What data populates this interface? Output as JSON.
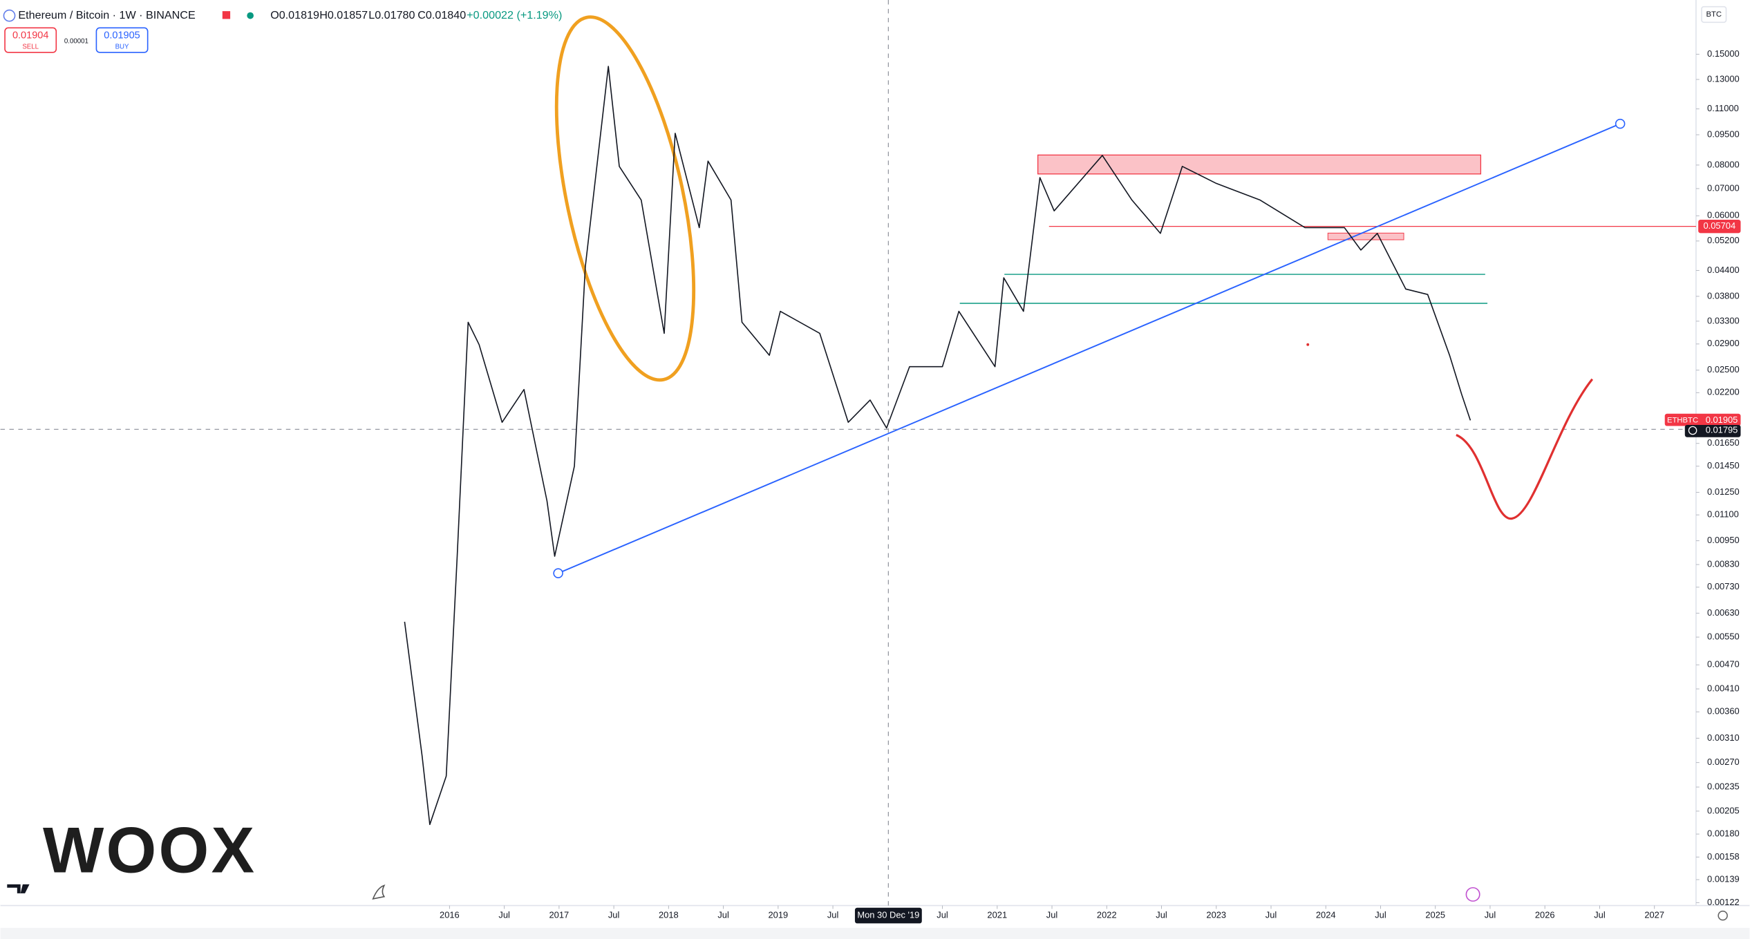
{
  "header": {
    "symbol": "Ethereum / Bitcoin · 1W · BINANCE",
    "open": "O0.01819",
    "high": "H0.01857",
    "low": "L0.01780",
    "close": "C0.01840",
    "change": "+0.00022 (+1.19%)",
    "sell_price": "0.01904",
    "sell": "SELL",
    "spread": "0.00001",
    "buy_price": "0.01905",
    "buy": "BUY"
  },
  "price_axis_unit": "BTC",
  "price_labels": {
    "level": 0.05704,
    "ticker": "ETHBTC",
    "last": 0.01905,
    "crosshair": 0.01795
  },
  "crosshair_label": "Mon 30 Dec '19",
  "watermark": "WOOX",
  "chart_data": {
    "type": "line",
    "log_scale": true,
    "grid": false,
    "x": [
      2015.59,
      2015.75,
      2015.82,
      2015.97,
      2016.07,
      2016.17,
      2016.27,
      2016.48,
      2016.68,
      2016.89,
      2016.96,
      2017.14,
      2017.24,
      2017.45,
      2017.55,
      2017.75,
      2017.96,
      2018.06,
      2018.28,
      2018.36,
      2018.57,
      2018.67,
      2018.92,
      2019.02,
      2019.38,
      2019.64,
      2019.84,
      2019.99,
      2020.2,
      2020.5,
      2020.65,
      2020.98,
      2021.06,
      2021.24,
      2021.39,
      2021.52,
      2021.96,
      2022.23,
      2022.49,
      2022.69,
      2023.0,
      2023.4,
      2023.81,
      2024.17,
      2024.32,
      2024.47,
      2024.73,
      2024.93,
      2025.13,
      2025.24,
      2025.32
    ],
    "series": [
      {
        "name": "ETHBTC",
        "color": "#131722",
        "values": [
          0.006,
          0.0028,
          0.0019,
          0.0025,
          0.0087,
          0.0328,
          0.0289,
          0.0186,
          0.0224,
          0.0119,
          0.0087,
          0.0145,
          0.045,
          0.14,
          0.0794,
          0.0656,
          0.0308,
          0.0958,
          0.0561,
          0.0818,
          0.0656,
          0.0328,
          0.0272,
          0.0349,
          0.0308,
          0.0186,
          0.0211,
          0.018,
          0.0255,
          0.0255,
          0.0349,
          0.0255,
          0.0422,
          0.0349,
          0.0745,
          0.0617,
          0.0845,
          0.0656,
          0.0543,
          0.0794,
          0.0721,
          0.0656,
          0.0561,
          0.0561,
          0.0494,
          0.0543,
          0.0396,
          0.0384,
          0.0272,
          0.0218,
          0.0188
        ]
      }
    ],
    "xlim": [
      2011.9,
      2027.38
    ],
    "ylim": [
      0.0012,
      0.204
    ],
    "xticks": [
      2016,
      {
        "value": 2016.5,
        "label": "Jul"
      },
      2017,
      {
        "value": 2017.5,
        "label": "Jul"
      },
      2018,
      {
        "value": 2018.5,
        "label": "Jul"
      },
      2019,
      {
        "value": 2019.5,
        "label": "Jul"
      },
      {
        "value": 2020.5,
        "label": "Jul"
      },
      2021,
      {
        "value": 2021.5,
        "label": "Jul"
      },
      2022,
      {
        "value": 2022.5,
        "label": "Jul"
      },
      2023,
      {
        "value": 2023.5,
        "label": "Jul"
      },
      2024,
      {
        "value": 2024.5,
        "label": "Jul"
      },
      2025,
      {
        "value": 2025.5,
        "label": "Jul"
      },
      2026,
      {
        "value": 2026.5,
        "label": "Jul"
      },
      2027
    ],
    "yticks": [
      {
        "value": 0.15,
        "label": "0.15000"
      },
      {
        "value": 0.13,
        "label": "0.13000"
      },
      {
        "value": 0.11,
        "label": "0.11000"
      },
      {
        "value": 0.095,
        "label": "0.09500"
      },
      {
        "value": 0.08,
        "label": "0.08000"
      },
      {
        "value": 0.07,
        "label": "0.07000"
      },
      {
        "value": 0.06,
        "label": "0.06000"
      },
      {
        "value": 0.052,
        "label": "0.05200"
      },
      {
        "value": 0.044,
        "label": "0.04400"
      },
      {
        "value": 0.038,
        "label": "0.03800"
      },
      {
        "value": 0.033,
        "label": "0.03300"
      },
      {
        "value": 0.029,
        "label": "0.02900"
      },
      {
        "value": 0.025,
        "label": "0.02500"
      },
      {
        "value": 0.022,
        "label": "0.02200"
      },
      {
        "value": 0.0165,
        "label": "0.01650"
      },
      {
        "value": 0.0145,
        "label": "0.01450"
      },
      {
        "value": 0.0125,
        "label": "0.01250"
      },
      {
        "value": 0.011,
        "label": "0.01100"
      },
      {
        "value": 0.0095,
        "label": "0.00950"
      },
      {
        "value": 0.0083,
        "label": "0.00830"
      },
      {
        "value": 0.0073,
        "label": "0.00730"
      },
      {
        "value": 0.0063,
        "label": "0.00630"
      },
      {
        "value": 0.0055,
        "label": "0.00550"
      },
      {
        "value": 0.0047,
        "label": "0.00470"
      },
      {
        "value": 0.0041,
        "label": "0.00410"
      },
      {
        "value": 0.0036,
        "label": "0.00360"
      },
      {
        "value": 0.0031,
        "label": "0.00310"
      },
      {
        "value": 0.0027,
        "label": "0.00270"
      },
      {
        "value": 0.00235,
        "label": "0.00235"
      },
      {
        "value": 0.00205,
        "label": "0.00205"
      },
      {
        "value": 0.0018,
        "label": "0.00180"
      },
      {
        "value": 0.00158,
        "label": "0.00158"
      },
      {
        "value": 0.00139,
        "label": "0.00139"
      },
      {
        "value": 0.00122,
        "label": "0.00122"
      }
    ]
  }
}
